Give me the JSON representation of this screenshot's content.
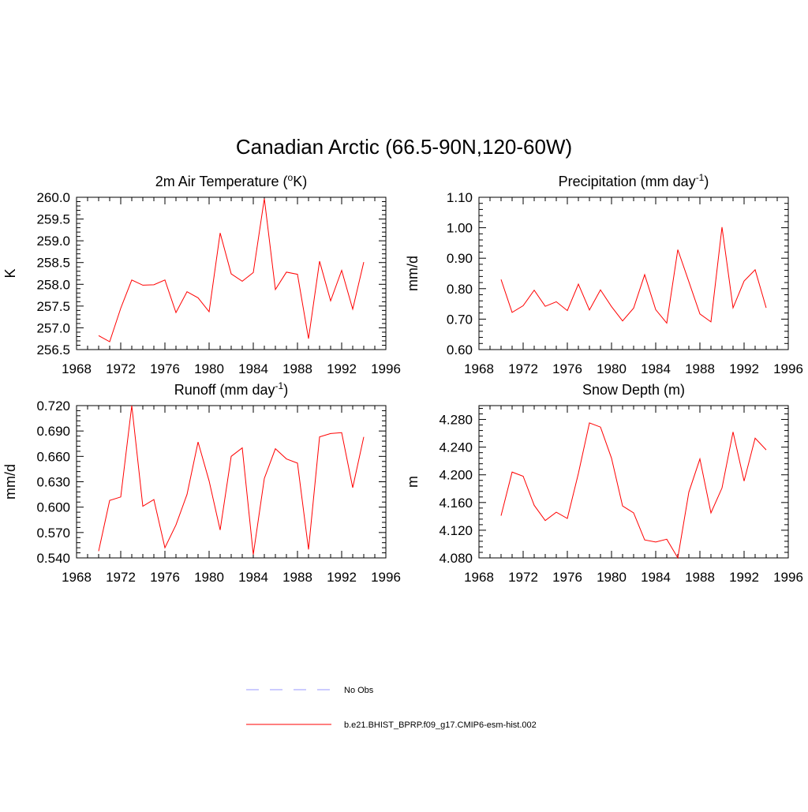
{
  "figure_title": "Canadian Arctic (66.5-90N,120-60W)",
  "legend": [
    {
      "label": "No Obs",
      "color": "#9999ff",
      "dash": true
    },
    {
      "label": "b.e21.BHIST_BPRP.f09_g17.CMIP6-esm-hist.002",
      "color": "#ff0000",
      "dash": false
    }
  ],
  "chart_data": [
    {
      "type": "line",
      "title": "2m Air Temperature (°K)",
      "title_parts": [
        "2m Air Temperature (",
        "o",
        "K)"
      ],
      "ylabel": "K",
      "xlabel": "",
      "xlim": [
        1968,
        1996
      ],
      "ylim": [
        256.5,
        260.0
      ],
      "xticks": [
        1968,
        1972,
        1976,
        1980,
        1984,
        1988,
        1992,
        1996
      ],
      "yticks": [
        "256.5",
        "257.0",
        "257.5",
        "258.0",
        "258.5",
        "259.0",
        "259.5",
        "260.0"
      ],
      "series": [
        {
          "name": "b.e21.BHIST_BPRP.f09_g17.CMIP6-esm-hist.002",
          "x": [
            1970,
            1971,
            1972,
            1973,
            1974,
            1975,
            1976,
            1977,
            1978,
            1979,
            1980,
            1981,
            1982,
            1983,
            1984,
            1985,
            1986,
            1987,
            1988,
            1989,
            1990,
            1991,
            1992,
            1993,
            1994
          ],
          "values": [
            256.82,
            256.68,
            257.45,
            258.1,
            257.98,
            257.99,
            258.1,
            257.35,
            257.83,
            257.69,
            257.37,
            259.18,
            258.24,
            258.07,
            258.27,
            259.97,
            257.88,
            258.28,
            258.23,
            256.75,
            258.53,
            257.62,
            258.32,
            257.43,
            258.51
          ]
        }
      ]
    },
    {
      "type": "line",
      "title": "Precipitation (mm day-1)",
      "title_parts": [
        "Precipitation (mm day",
        "-1",
        ")"
      ],
      "ylabel": "mm/d",
      "xlabel": "",
      "xlim": [
        1968,
        1996
      ],
      "ylim": [
        0.6,
        1.1
      ],
      "xticks": [
        1968,
        1972,
        1976,
        1980,
        1984,
        1988,
        1992,
        1996
      ],
      "yticks": [
        "0.60",
        "0.70",
        "0.80",
        "0.90",
        "1.00",
        "1.10"
      ],
      "series": [
        {
          "name": "b.e21.BHIST_BPRP.f09_g17.CMIP6-esm-hist.002",
          "x": [
            1970,
            1971,
            1972,
            1973,
            1974,
            1975,
            1976,
            1977,
            1978,
            1979,
            1980,
            1981,
            1982,
            1983,
            1984,
            1985,
            1986,
            1987,
            1988,
            1989,
            1990,
            1991,
            1992,
            1993,
            1994
          ],
          "values": [
            0.83,
            0.722,
            0.744,
            0.795,
            0.742,
            0.757,
            0.728,
            0.815,
            0.73,
            0.796,
            0.741,
            0.694,
            0.736,
            0.846,
            0.731,
            0.687,
            0.928,
            0.823,
            0.717,
            0.691,
            1.002,
            0.737,
            0.825,
            0.862,
            0.737
          ]
        }
      ]
    },
    {
      "type": "line",
      "title": "Runoff (mm day-1)",
      "title_parts": [
        "Runoff (mm day",
        "-1",
        ")"
      ],
      "ylabel": "mm/d",
      "xlabel": "",
      "xlim": [
        1968,
        1996
      ],
      "ylim": [
        0.54,
        0.72
      ],
      "xticks": [
        1968,
        1972,
        1976,
        1980,
        1984,
        1988,
        1992,
        1996
      ],
      "yticks": [
        "0.540",
        "0.570",
        "0.600",
        "0.630",
        "0.660",
        "0.690",
        "0.720"
      ],
      "series": [
        {
          "name": "b.e21.BHIST_BPRP.f09_g17.CMIP6-esm-hist.002",
          "x": [
            1970,
            1971,
            1972,
            1973,
            1974,
            1975,
            1976,
            1977,
            1978,
            1979,
            1980,
            1981,
            1982,
            1983,
            1984,
            1985,
            1986,
            1987,
            1988,
            1989,
            1990,
            1991,
            1992,
            1993,
            1994
          ],
          "values": [
            0.548,
            0.608,
            0.612,
            0.72,
            0.601,
            0.609,
            0.552,
            0.579,
            0.615,
            0.677,
            0.631,
            0.573,
            0.66,
            0.67,
            0.544,
            0.634,
            0.669,
            0.657,
            0.652,
            0.55,
            0.683,
            0.687,
            0.688,
            0.623,
            0.683
          ]
        }
      ]
    },
    {
      "type": "line",
      "title": "Snow Depth (m)",
      "title_parts": [
        "Snow Depth (m)",
        "",
        ""
      ],
      "ylabel": "m",
      "xlabel": "",
      "xlim": [
        1968,
        1996
      ],
      "ylim": [
        4.08,
        4.3
      ],
      "xticks": [
        1968,
        1972,
        1976,
        1980,
        1984,
        1988,
        1992,
        1996
      ],
      "yticks": [
        "4.080",
        "4.120",
        "4.160",
        "4.200",
        "4.240",
        "4.280"
      ],
      "series": [
        {
          "name": "b.e21.BHIST_BPRP.f09_g17.CMIP6-esm-hist.002",
          "x": [
            1970,
            1971,
            1972,
            1973,
            1974,
            1975,
            1976,
            1977,
            1978,
            1979,
            1980,
            1981,
            1982,
            1983,
            1984,
            1985,
            1986,
            1987,
            1988,
            1989,
            1990,
            1991,
            1992,
            1993,
            1994
          ],
          "values": [
            4.141,
            4.204,
            4.198,
            4.156,
            4.134,
            4.146,
            4.137,
            4.202,
            4.275,
            4.269,
            4.224,
            4.155,
            4.145,
            4.106,
            4.103,
            4.107,
            4.08,
            4.175,
            4.223,
            4.145,
            4.181,
            4.262,
            4.191,
            4.253,
            4.236
          ]
        }
      ]
    }
  ]
}
